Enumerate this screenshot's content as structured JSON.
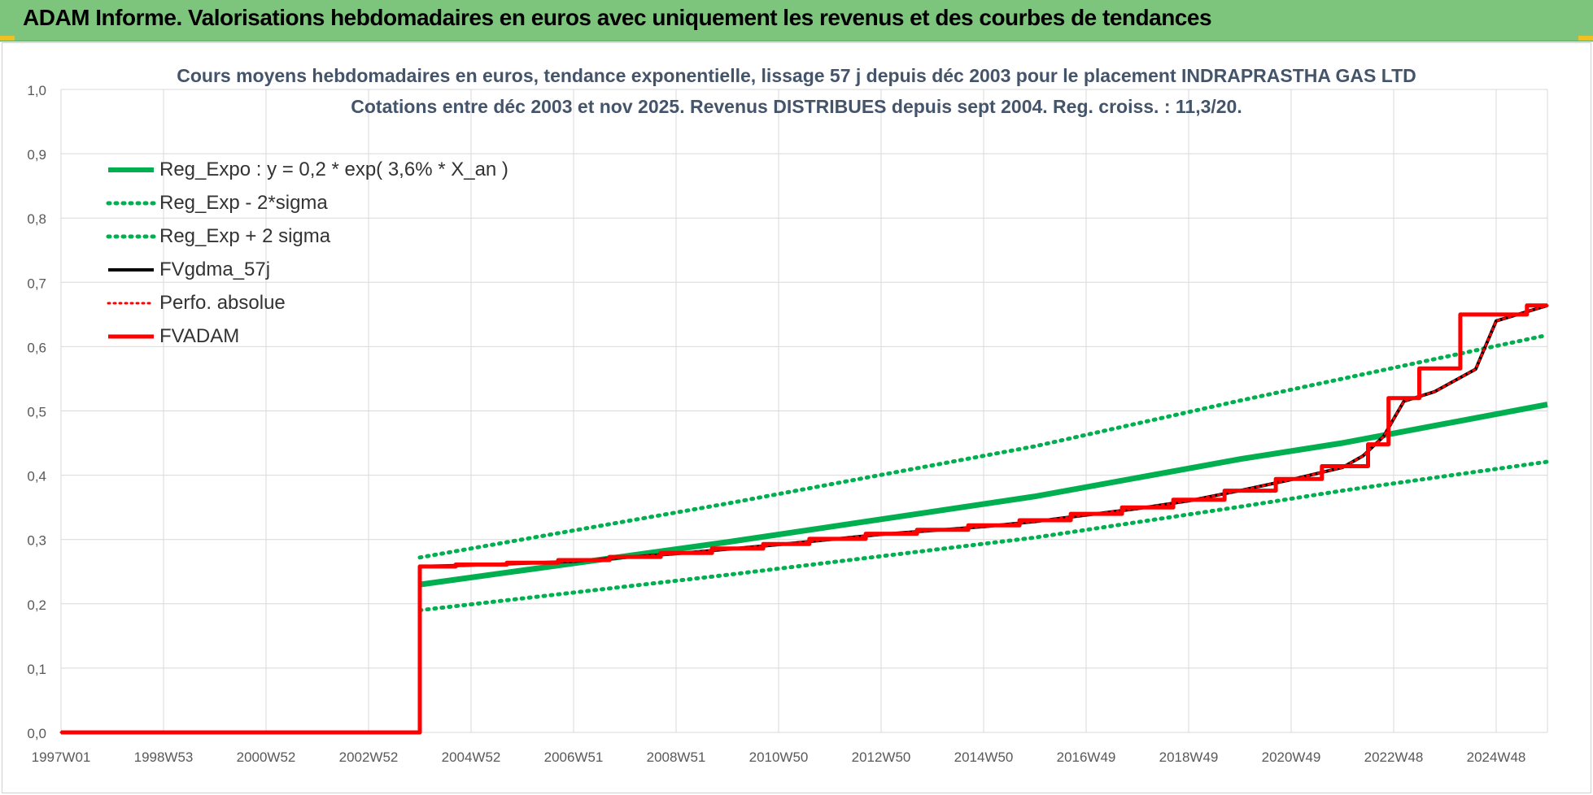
{
  "banner": {
    "title": "ADAM Informe. Valorisations hebdomadaires en euros avec uniquement les revenus et des courbes de tendances"
  },
  "colors": {
    "banner_bg": "#7dc57d",
    "green": "#00b050",
    "red": "#ff0000",
    "black": "#000000",
    "text": "#44546a",
    "grid": "#d9d9d9"
  },
  "chart_data": {
    "type": "line",
    "title_line1": "Cours moyens hebdomadaires en euros, tendance exponentielle, lissage 57 j depuis déc 2003 pour le placement INDRAPRASTHA GAS LTD",
    "title_line2": "Cotations entre déc 2003 et nov 2025. Revenus DISTRIBUES depuis sept 2004. Reg. croiss. : 11,3/20.",
    "xlabel": "",
    "ylabel": "",
    "x_tick_labels": [
      "1997W01",
      "1998W53",
      "2000W52",
      "2002W52",
      "2004W52",
      "2006W51",
      "2008W51",
      "2010W50",
      "2012W50",
      "2014W50",
      "2016W49",
      "2018W49",
      "2020W49",
      "2022W48",
      "2024W48"
    ],
    "x_range": [
      1997.0,
      2026.0
    ],
    "y_tick_labels": [
      "0,0",
      "0,1",
      "0,2",
      "0,3",
      "0,4",
      "0,5",
      "0,6",
      "0,7",
      "0,8",
      "0,9",
      "1,0"
    ],
    "ylim": [
      0,
      1.0
    ],
    "grid": true,
    "legend_position": "top-left",
    "series": [
      {
        "name": "Reg_Expo : y = 0,2 * exp( 3,6% *  X_an )",
        "style": "solid",
        "color": "#00b050",
        "points": [
          [
            2004.0,
            0.23
          ],
          [
            2010.0,
            0.296
          ],
          [
            2016.0,
            0.367
          ],
          [
            2020.0,
            0.425
          ],
          [
            2022.0,
            0.45
          ],
          [
            2026.0,
            0.51
          ]
        ]
      },
      {
        "name": "Reg_Exp - 2*sigma",
        "style": "dotted",
        "color": "#00b050",
        "points": [
          [
            2004.0,
            0.19
          ],
          [
            2010.0,
            0.245
          ],
          [
            2016.0,
            0.303
          ],
          [
            2020.0,
            0.351
          ],
          [
            2022.0,
            0.376
          ],
          [
            2026.0,
            0.421
          ]
        ]
      },
      {
        "name": "Reg_Exp + 2 sigma",
        "style": "dotted",
        "color": "#00b050",
        "points": [
          [
            2004.0,
            0.272
          ],
          [
            2010.0,
            0.356
          ],
          [
            2016.0,
            0.445
          ],
          [
            2020.0,
            0.516
          ],
          [
            2022.0,
            0.55
          ],
          [
            2026.0,
            0.618
          ]
        ]
      },
      {
        "name": "FVgdma_57j",
        "style": "solid",
        "color": "#000000",
        "points": [
          [
            1997.0,
            0.0
          ],
          [
            2004.0,
            0.0
          ],
          [
            2004.0,
            0.258
          ],
          [
            2005.0,
            0.26
          ],
          [
            2006.0,
            0.263
          ],
          [
            2007.0,
            0.266
          ],
          [
            2008.0,
            0.272
          ],
          [
            2009.0,
            0.278
          ],
          [
            2010.0,
            0.285
          ],
          [
            2011.0,
            0.292
          ],
          [
            2012.0,
            0.3
          ],
          [
            2013.0,
            0.308
          ],
          [
            2014.0,
            0.314
          ],
          [
            2015.0,
            0.32
          ],
          [
            2016.0,
            0.328
          ],
          [
            2017.0,
            0.338
          ],
          [
            2018.0,
            0.348
          ],
          [
            2019.0,
            0.36
          ],
          [
            2020.0,
            0.376
          ],
          [
            2021.0,
            0.393
          ],
          [
            2022.0,
            0.412
          ],
          [
            2022.4,
            0.43
          ],
          [
            2022.8,
            0.46
          ],
          [
            2023.2,
            0.515
          ],
          [
            2023.8,
            0.53
          ],
          [
            2024.6,
            0.565
          ],
          [
            2025.0,
            0.64
          ],
          [
            2025.5,
            0.652
          ],
          [
            2026.0,
            0.664
          ]
        ]
      },
      {
        "name": "Perfo. absolue",
        "style": "dotted",
        "color": "#ff0000",
        "points": [
          [
            1997.0,
            0.0
          ],
          [
            2004.0,
            0.0
          ],
          [
            2004.0,
            0.258
          ],
          [
            2005.0,
            0.26
          ],
          [
            2006.0,
            0.263
          ],
          [
            2007.0,
            0.266
          ],
          [
            2008.0,
            0.272
          ],
          [
            2009.0,
            0.278
          ],
          [
            2010.0,
            0.285
          ],
          [
            2011.0,
            0.292
          ],
          [
            2012.0,
            0.3
          ],
          [
            2013.0,
            0.308
          ],
          [
            2014.0,
            0.314
          ],
          [
            2015.0,
            0.32
          ],
          [
            2016.0,
            0.328
          ],
          [
            2017.0,
            0.338
          ],
          [
            2018.0,
            0.348
          ],
          [
            2019.0,
            0.36
          ],
          [
            2020.0,
            0.376
          ],
          [
            2021.0,
            0.393
          ],
          [
            2022.0,
            0.412
          ],
          [
            2022.4,
            0.43
          ],
          [
            2022.8,
            0.46
          ],
          [
            2023.2,
            0.515
          ],
          [
            2023.8,
            0.53
          ],
          [
            2024.6,
            0.565
          ],
          [
            2025.0,
            0.64
          ],
          [
            2025.5,
            0.652
          ],
          [
            2026.0,
            0.664
          ]
        ]
      },
      {
        "name": "FVADAM",
        "style": "solid-step",
        "color": "#ff0000",
        "points": [
          [
            1997.0,
            0.0
          ],
          [
            2004.0,
            0.0
          ],
          [
            2004.0,
            0.258
          ],
          [
            2004.7,
            0.258
          ],
          [
            2004.7,
            0.261
          ],
          [
            2005.7,
            0.261
          ],
          [
            2005.7,
            0.264
          ],
          [
            2006.7,
            0.264
          ],
          [
            2006.7,
            0.268
          ],
          [
            2007.7,
            0.268
          ],
          [
            2007.7,
            0.273
          ],
          [
            2008.7,
            0.273
          ],
          [
            2008.7,
            0.279
          ],
          [
            2009.7,
            0.279
          ],
          [
            2009.7,
            0.286
          ],
          [
            2010.7,
            0.286
          ],
          [
            2010.7,
            0.293
          ],
          [
            2011.6,
            0.293
          ],
          [
            2011.6,
            0.301
          ],
          [
            2012.7,
            0.301
          ],
          [
            2012.7,
            0.309
          ],
          [
            2013.7,
            0.309
          ],
          [
            2013.7,
            0.315
          ],
          [
            2014.7,
            0.315
          ],
          [
            2014.7,
            0.322
          ],
          [
            2015.7,
            0.322
          ],
          [
            2015.7,
            0.33
          ],
          [
            2016.7,
            0.33
          ],
          [
            2016.7,
            0.34
          ],
          [
            2017.7,
            0.34
          ],
          [
            2017.7,
            0.35
          ],
          [
            2018.7,
            0.35
          ],
          [
            2018.7,
            0.362
          ],
          [
            2019.7,
            0.362
          ],
          [
            2019.7,
            0.376
          ],
          [
            2020.7,
            0.376
          ],
          [
            2020.7,
            0.394
          ],
          [
            2021.6,
            0.394
          ],
          [
            2021.6,
            0.414
          ],
          [
            2022.5,
            0.414
          ],
          [
            2022.5,
            0.448
          ],
          [
            2022.9,
            0.448
          ],
          [
            2022.9,
            0.52
          ],
          [
            2023.5,
            0.52
          ],
          [
            2023.5,
            0.566
          ],
          [
            2024.3,
            0.566
          ],
          [
            2024.3,
            0.65
          ],
          [
            2025.6,
            0.65
          ],
          [
            2025.6,
            0.664
          ],
          [
            2026.0,
            0.664
          ]
        ]
      }
    ]
  }
}
